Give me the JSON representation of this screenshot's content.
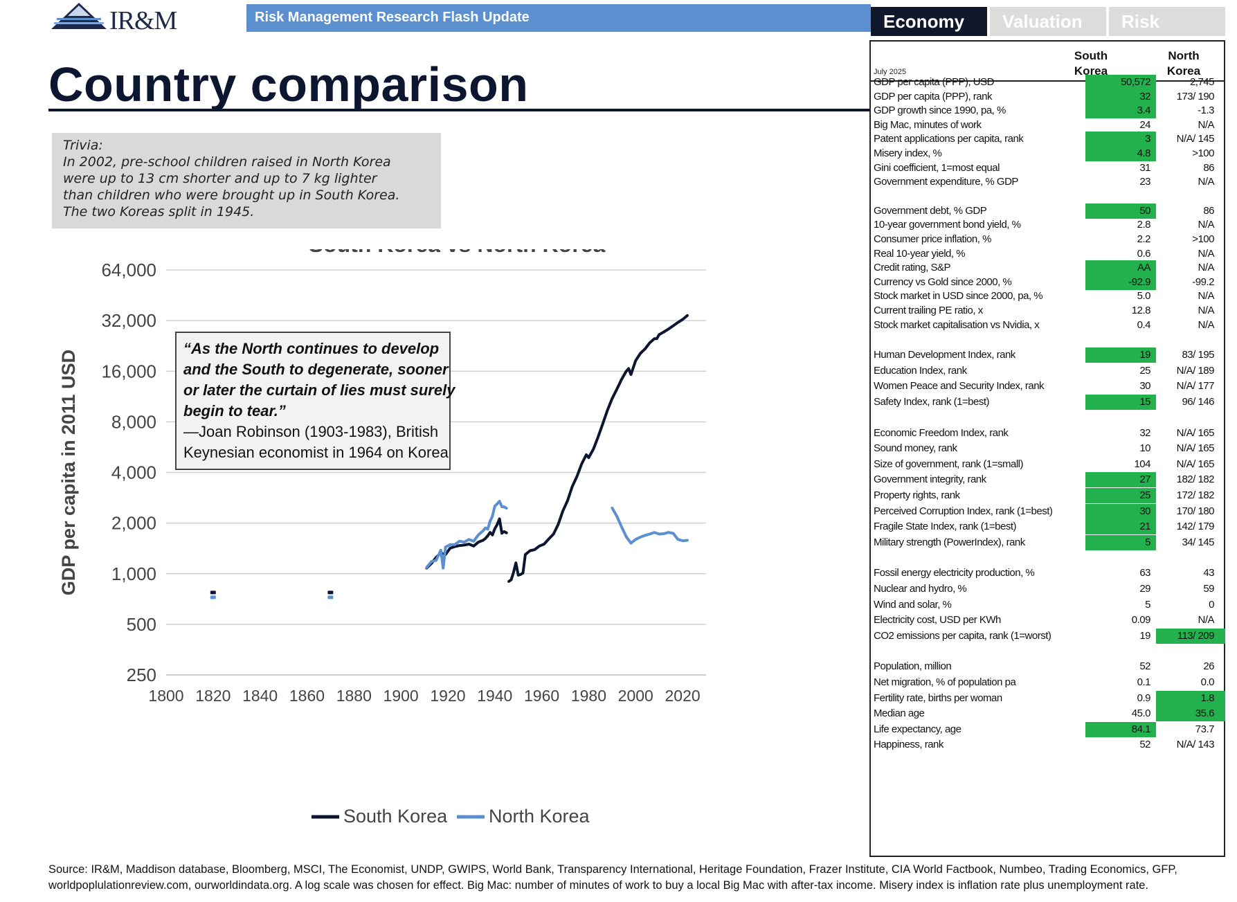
{
  "header": {
    "logo_text": "IR&M",
    "banner": "Risk Management Research Flash Update",
    "tabs": [
      "Economy",
      "Valuation",
      "Risk"
    ],
    "title": "Country comparison"
  },
  "trivia": {
    "lines": [
      "Trivia:",
      "In 2002, pre-school children raised in North Korea",
      "were up to 13 cm shorter and up to 7 kg lighter",
      "than children who were brought up in South Korea.",
      "The two Koreas split in 1945."
    ]
  },
  "quote": {
    "lines": [
      "“As the North continues to develop",
      "and the South to degenerate, sooner",
      "or later the curtain of lies must surely",
      "begin to tear.”"
    ],
    "attribution": [
      "—Joan Robinson (1903-1983), British",
      "Keynesian economist in 1964 on Korea"
    ]
  },
  "chart_data": {
    "type": "line",
    "title": "South Korea vs North Korea",
    "ylabel": "GDP per capita in 2011 USD",
    "xlabel": "",
    "y_scale": "log2",
    "ylim": [
      250,
      64000
    ],
    "xlim": [
      1800,
      2030
    ],
    "y_ticks": [
      250,
      500,
      1000,
      2000,
      4000,
      8000,
      16000,
      32000,
      64000
    ],
    "y_tick_labels": [
      "250",
      "500",
      "1,000",
      "2,000",
      "4,000",
      "8,000",
      "16,000",
      "32,000",
      "64,000"
    ],
    "x_ticks": [
      1800,
      1820,
      1840,
      1860,
      1880,
      1900,
      1920,
      1940,
      1960,
      1980,
      2000,
      2020
    ],
    "x_tick_labels": [
      "1800",
      "1820",
      "1840",
      "1860",
      "1880",
      "1900",
      "1920",
      "1940",
      "1960",
      "1980",
      "2000",
      "2020"
    ],
    "legend": [
      "South Korea",
      "North Korea"
    ],
    "grid": true,
    "colors": {
      "south_korea": "#0d1630",
      "north_korea": "#5b8fd0"
    },
    "series": [
      {
        "name": "South Korea",
        "segments": [
          [
            [
              1820,
              770
            ],
            [
              1820,
              770
            ]
          ],
          [
            [
              1870,
              770
            ],
            [
              1870,
              770
            ]
          ],
          [
            [
              1911,
              1080
            ],
            [
              1913,
              1150
            ],
            [
              1915,
              1250
            ],
            [
              1917,
              1330
            ],
            [
              1919,
              1300
            ],
            [
              1921,
              1420
            ],
            [
              1923,
              1450
            ],
            [
              1925,
              1470
            ],
            [
              1927,
              1480
            ],
            [
              1929,
              1500
            ],
            [
              1931,
              1460
            ],
            [
              1933,
              1540
            ],
            [
              1935,
              1580
            ],
            [
              1936,
              1620
            ],
            [
              1937,
              1680
            ],
            [
              1938,
              1760
            ],
            [
              1939,
              1700
            ],
            [
              1940,
              1850
            ],
            [
              1941,
              1960
            ],
            [
              1942,
              2120
            ],
            [
              1943,
              1740
            ],
            [
              1944,
              1780
            ],
            [
              1945,
              1750
            ]
          ],
          [
            [
              1946,
              900
            ],
            [
              1947,
              920
            ],
            [
              1948,
              1020
            ],
            [
              1949,
              1160
            ],
            [
              1950,
              980
            ],
            [
              1951,
              990
            ],
            [
              1952,
              1010
            ],
            [
              1953,
              1300
            ],
            [
              1955,
              1370
            ],
            [
              1957,
              1390
            ],
            [
              1959,
              1460
            ],
            [
              1961,
              1500
            ],
            [
              1963,
              1610
            ],
            [
              1965,
              1720
            ],
            [
              1967,
              1960
            ],
            [
              1969,
              2360
            ],
            [
              1971,
              2720
            ],
            [
              1973,
              3300
            ],
            [
              1975,
              3790
            ],
            [
              1977,
              4500
            ],
            [
              1979,
              5100
            ],
            [
              1980,
              4900
            ],
            [
              1982,
              5500
            ],
            [
              1984,
              6500
            ],
            [
              1986,
              7800
            ],
            [
              1988,
              9400
            ],
            [
              1990,
              11000
            ],
            [
              1992,
              12500
            ],
            [
              1994,
              14300
            ],
            [
              1996,
              16000
            ],
            [
              1997,
              16600
            ],
            [
              1998,
              15300
            ],
            [
              2000,
              18500
            ],
            [
              2002,
              20400
            ],
            [
              2004,
              21700
            ],
            [
              2006,
              23600
            ],
            [
              2008,
              25000
            ],
            [
              2009,
              25000
            ],
            [
              2010,
              26400
            ],
            [
              2012,
              27400
            ],
            [
              2014,
              28500
            ],
            [
              2016,
              29800
            ],
            [
              2018,
              31200
            ],
            [
              2020,
              32500
            ],
            [
              2022,
              34300
            ]
          ]
        ]
      },
      {
        "name": "North Korea",
        "segments": [
          [
            [
              1820,
              720
            ],
            [
              1820,
              720
            ]
          ],
          [
            [
              1870,
              720
            ],
            [
              1870,
              720
            ]
          ],
          [
            [
              1911,
              1090
            ],
            [
              1913,
              1180
            ],
            [
              1915,
              1200
            ],
            [
              1917,
              1380
            ],
            [
              1918,
              1080
            ],
            [
              1919,
              1440
            ],
            [
              1921,
              1490
            ],
            [
              1923,
              1490
            ],
            [
              1925,
              1560
            ],
            [
              1927,
              1540
            ],
            [
              1929,
              1600
            ],
            [
              1931,
              1560
            ],
            [
              1933,
              1700
            ],
            [
              1935,
              1800
            ],
            [
              1936,
              1870
            ],
            [
              1937,
              1840
            ],
            [
              1938,
              2050
            ],
            [
              1939,
              2200
            ],
            [
              1940,
              2520
            ],
            [
              1941,
              2600
            ],
            [
              1942,
              2700
            ],
            [
              1943,
              2500
            ],
            [
              1944,
              2500
            ],
            [
              1945,
              2450
            ]
          ],
          [
            [
              1990,
              2460
            ],
            [
              1992,
              2200
            ],
            [
              1994,
              1900
            ],
            [
              1996,
              1660
            ],
            [
              1998,
              1520
            ],
            [
              2000,
              1600
            ],
            [
              2002,
              1650
            ],
            [
              2004,
              1690
            ],
            [
              2006,
              1720
            ],
            [
              2008,
              1760
            ],
            [
              2010,
              1720
            ],
            [
              2012,
              1730
            ],
            [
              2014,
              1760
            ],
            [
              2016,
              1740
            ],
            [
              2018,
              1600
            ],
            [
              2020,
              1570
            ],
            [
              2022,
              1580
            ]
          ]
        ]
      }
    ]
  },
  "table": {
    "date": "July 2025",
    "col1": [
      "South",
      "Korea"
    ],
    "col2": [
      "North",
      "Korea"
    ],
    "rows": [
      {
        "label": "GDP per capita (PPP), USD",
        "sk": "50,572",
        "nk": "2,745",
        "sk_hl": true
      },
      {
        "label": "GDP per capita (PPP), rank",
        "sk": "32",
        "nk": "173/ 190",
        "sk_hl": true
      },
      {
        "label": "GDP growth since 1990, pa, %",
        "sk": "3.4",
        "nk": "-1.3",
        "sk_hl": true
      },
      {
        "label": "Big Mac, minutes of work",
        "sk": "24",
        "nk": "N/A"
      },
      {
        "label": "Patent applications per capita, rank",
        "sk": "3",
        "nk": "N/A/ 145",
        "sk_hl": true
      },
      {
        "label": "Misery index, %",
        "sk": "4.8",
        "nk": ">100",
        "sk_hl": true
      },
      {
        "label": "Gini coefficient, 1=most equal",
        "sk": "31",
        "nk": "86"
      },
      {
        "label": "Government expenditure, % GDP",
        "sk": "23",
        "nk": "N/A"
      },
      {
        "label": "Government debt, % GDP",
        "sk": "50",
        "nk": "86",
        "sk_hl": true
      },
      {
        "label": "10-year government bond yield, %",
        "sk": "2.8",
        "nk": "N/A"
      },
      {
        "label": "Consumer price inflation, %",
        "sk": "2.2",
        "nk": ">100"
      },
      {
        "label": "Real 10-year yield, %",
        "sk": "0.6",
        "nk": "N/A"
      },
      {
        "label": "Credit rating, S&P",
        "sk": "AA",
        "nk": "N/A",
        "sk_hl": true
      },
      {
        "label": "Currency vs Gold since 2000, %",
        "sk": "-92.9",
        "nk": "-99.2",
        "sk_hl": true
      },
      {
        "label": "Stock market in USD since 2000, pa, %",
        "sk": "5.0",
        "nk": "N/A"
      },
      {
        "label": "Current trailing PE ratio, x",
        "sk": "12.8",
        "nk": "N/A"
      },
      {
        "label": "Stock market capitalisation vs Nvidia, x",
        "sk": "0.4",
        "nk": "N/A"
      },
      {
        "label": "Human Development Index, rank",
        "sk": "19",
        "nk": "83/ 195",
        "sk_hl": true
      },
      {
        "label": "Education Index, rank",
        "sk": "25",
        "nk": "N/A/ 189"
      },
      {
        "label": "Women Peace and Security Index, rank",
        "sk": "30",
        "nk": "N/A/ 177"
      },
      {
        "label": "Safety Index, rank (1=best)",
        "sk": "15",
        "nk": "96/ 146",
        "sk_hl": true
      },
      {
        "label": "Economic Freedom Index, rank",
        "sk": "32",
        "nk": "N/A/ 165"
      },
      {
        "label": "Sound money, rank",
        "sk": "10",
        "nk": "N/A/ 165"
      },
      {
        "label": "Size of government, rank (1=small)",
        "sk": "104",
        "nk": "N/A/ 165"
      },
      {
        "label": "Government integrity, rank",
        "sk": "27",
        "nk": "182/ 182",
        "sk_hl": true
      },
      {
        "label": "Property rights, rank",
        "sk": "25",
        "nk": "172/ 182",
        "sk_hl": true
      },
      {
        "label": "Perceived Corruption Index, rank (1=best)",
        "sk": "30",
        "nk": "170/ 180",
        "sk_hl": true
      },
      {
        "label": "Fragile State Index, rank (1=best)",
        "sk": "21",
        "nk": "142/ 179",
        "sk_hl": true
      },
      {
        "label": "Military strength (PowerIndex), rank",
        "sk": "5",
        "nk": "34/ 145",
        "sk_hl": true
      },
      {
        "label": "Fossil energy electricity production, %",
        "sk": "63",
        "nk": "43"
      },
      {
        "label": "Nuclear and hydro, %",
        "sk": "29",
        "nk": "59"
      },
      {
        "label": "Wind and solar, %",
        "sk": "5",
        "nk": "0"
      },
      {
        "label": "Electricity cost, USD per KWh",
        "sk": "0.09",
        "nk": "N/A"
      },
      {
        "label": "CO2 emissions per capita, rank (1=worst)",
        "sk": "19",
        "nk": "113/ 209",
        "nk_hl": true
      },
      {
        "label": "Population, million",
        "sk": "52",
        "nk": "26"
      },
      {
        "label": "Net migration, %  of population pa",
        "sk": "0.1",
        "nk": "0.0"
      },
      {
        "label": "Fertility rate, births per woman",
        "sk": "0.9",
        "nk": "1.8",
        "nk_hl": true
      },
      {
        "label": "Median age",
        "sk": "45.0",
        "nk": "35.6",
        "nk_hl": true
      },
      {
        "label": "Life expectancy, age",
        "sk": "84.1",
        "nk": "73.7",
        "sk_hl": true
      },
      {
        "label": "Happiness, rank",
        "sk": "52",
        "nk": "N/A/ 143"
      }
    ]
  },
  "source": [
    "Source: IR&M, Maddison database, Bloomberg, MSCI, The Economist, UNDP, GWIPS, World Bank, Transparency International, Heritage Foundation, Frazer Institute, CIA World Factbook, Numbeo, Trading Economics, GFP,",
    "worldpoplulationreview.com, ourworldindata.org. A log scale was chosen for effect. Big Mac: number of minutes of work to buy a local Big Mac with after-tax income. Misery index is inflation rate plus unemployment rate."
  ]
}
